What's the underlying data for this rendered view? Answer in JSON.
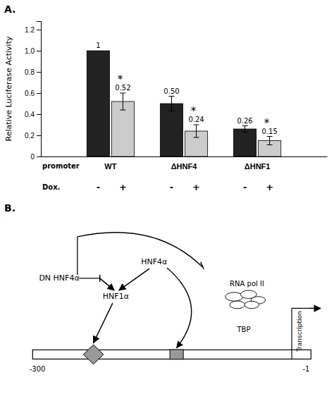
{
  "chart_data": [
    {
      "type": "bar",
      "title": "A.",
      "ylabel": "Relative Luciferase Activity",
      "categories": [
        "WT",
        "ΔHNF4",
        "ΔHNF1"
      ],
      "series": [
        {
          "color": "#222222",
          "values": [
            1.0,
            0.5,
            0.26
          ],
          "errors": [
            0.0,
            0.07,
            0.03
          ],
          "value_labels": [
            "1",
            "0.50",
            "0.26"
          ],
          "dox_labels": [
            "-",
            "-",
            "-"
          ]
        },
        {
          "color": "#cccccc",
          "values": [
            0.52,
            0.24,
            0.15
          ],
          "errors": [
            0.08,
            0.06,
            0.04
          ],
          "value_labels": [
            "0.52",
            "0.24",
            "0.15"
          ],
          "dox_labels": [
            "+",
            "+",
            "+"
          ],
          "star_labels": [
            "*",
            "*",
            "*"
          ]
        }
      ],
      "row_labels": [
        "promoter",
        "Dox."
      ],
      "ylim": [
        0,
        1.28
      ],
      "yticks": [
        0,
        0.2,
        0.4,
        0.6,
        0.8,
        {
          "value": 1.0,
          "label": "1.0"
        },
        1.2
      ],
      "data_labels": true
    },
    {
      "type": "diagram",
      "title": "B.",
      "annotations": [
        "HNF4α",
        "HNF1α",
        "DN HNF4α",
        "RNA pol II",
        "TBP",
        "Transcription",
        "-300",
        "-1"
      ]
    }
  ]
}
